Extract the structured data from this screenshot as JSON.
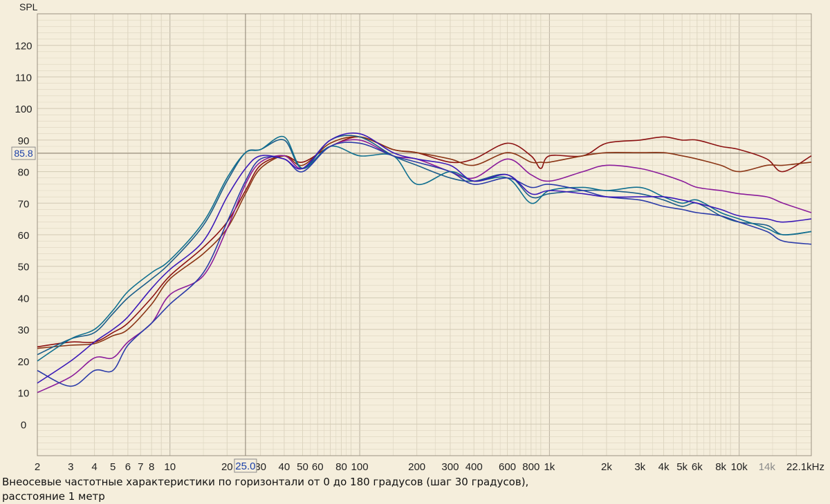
{
  "chart_data": {
    "type": "line",
    "ylabel": "SPL",
    "xunit": "kHz",
    "ylim": [
      -10,
      130
    ],
    "xlim": [
      2,
      24000
    ],
    "x_scale": "log",
    "grid": true,
    "y_ticks": [
      0,
      10,
      20,
      30,
      40,
      50,
      60,
      70,
      80,
      90,
      100,
      110,
      120
    ],
    "x_tick_labels": [
      {
        "v": 2,
        "t": "2"
      },
      {
        "v": 3,
        "t": "3"
      },
      {
        "v": 4,
        "t": "4"
      },
      {
        "v": 5,
        "t": "5"
      },
      {
        "v": 6,
        "t": "6"
      },
      {
        "v": 7,
        "t": "7"
      },
      {
        "v": 8,
        "t": "8"
      },
      {
        "v": 10,
        "t": "10"
      },
      {
        "v": 20,
        "t": "20"
      },
      {
        "v": 30,
        "t": "30"
      },
      {
        "v": 40,
        "t": "40"
      },
      {
        "v": 50,
        "t": "50"
      },
      {
        "v": 60,
        "t": "60"
      },
      {
        "v": 80,
        "t": "80"
      },
      {
        "v": 100,
        "t": "100"
      },
      {
        "v": 200,
        "t": "200"
      },
      {
        "v": 300,
        "t": "300"
      },
      {
        "v": 400,
        "t": "400"
      },
      {
        "v": 600,
        "t": "600"
      },
      {
        "v": 800,
        "t": "800"
      },
      {
        "v": 1000,
        "t": "1k"
      },
      {
        "v": 2000,
        "t": "2k"
      },
      {
        "v": 3000,
        "t": "3k"
      },
      {
        "v": 4000,
        "t": "4k"
      },
      {
        "v": 5000,
        "t": "5k"
      },
      {
        "v": 6000,
        "t": "6k"
      },
      {
        "v": 8000,
        "t": "8k"
      },
      {
        "v": 10000,
        "t": "10k"
      },
      {
        "v": 14000,
        "t": "14k",
        "muted": true
      },
      {
        "v": 22100,
        "t": "22.1kHz"
      }
    ],
    "cursor": {
      "x": 25.0,
      "y": 85.8,
      "x_label": "25.0",
      "y_label": "85.8"
    },
    "series": [
      {
        "color": "#8b1010",
        "x": [
          2,
          3,
          4,
          5,
          6,
          8,
          10,
          15,
          20,
          25,
          30,
          40,
          50,
          70,
          100,
          150,
          200,
          300,
          400,
          600,
          800,
          900,
          1000,
          1500,
          2000,
          3000,
          4000,
          5000,
          6000,
          8000,
          10000,
          14000,
          17000,
          24000
        ],
        "y": [
          24.5,
          26,
          26,
          29,
          32,
          40,
          47,
          56,
          64,
          74,
          82,
          85,
          83,
          88,
          91,
          87,
          86,
          83,
          84,
          89,
          85,
          81,
          85,
          85,
          89,
          90,
          91,
          90,
          90,
          88,
          87,
          84,
          80,
          85
        ]
      },
      {
        "color": "#8a3414",
        "x": [
          2,
          3,
          4,
          5,
          6,
          8,
          10,
          15,
          20,
          25,
          30,
          40,
          50,
          70,
          100,
          150,
          200,
          300,
          400,
          600,
          800,
          900,
          1000,
          1500,
          2000,
          3000,
          4000,
          5000,
          6000,
          8000,
          10000,
          14000,
          17000,
          24000
        ],
        "y": [
          24,
          25,
          25.5,
          28,
          30,
          38,
          46,
          54,
          62,
          73,
          81,
          85,
          82,
          89,
          91,
          87,
          86,
          84,
          82,
          86,
          83,
          83,
          83,
          85,
          86,
          86,
          86,
          85,
          84,
          82,
          80,
          82,
          82,
          83
        ]
      },
      {
        "color": "#8a1a9a",
        "x": [
          2,
          3,
          4,
          5,
          6,
          8,
          10,
          15,
          20,
          25,
          30,
          40,
          50,
          70,
          100,
          150,
          200,
          300,
          400,
          600,
          800,
          1000,
          1500,
          2000,
          3000,
          4000,
          5000,
          6000,
          8000,
          10000,
          14000,
          17000,
          24000
        ],
        "y": [
          10,
          15,
          21,
          21,
          26,
          32,
          41,
          47,
          62,
          76,
          83,
          85,
          81,
          88,
          90,
          85,
          84,
          80,
          78,
          84,
          79,
          77,
          80,
          82,
          81,
          79,
          77,
          75,
          74,
          73,
          72,
          70,
          67
        ]
      },
      {
        "color": "#1a5c8a",
        "x": [
          2,
          3,
          4,
          5,
          6,
          8,
          10,
          15,
          20,
          25,
          30,
          40,
          50,
          70,
          100,
          150,
          200,
          300,
          400,
          600,
          800,
          1000,
          1500,
          2000,
          3000,
          4000,
          5000,
          6000,
          8000,
          10000,
          14000,
          17000,
          24000
        ],
        "y": [
          22,
          27,
          29,
          35,
          40,
          46,
          51,
          63,
          77,
          86,
          87,
          90,
          81,
          90,
          91,
          85,
          82,
          78,
          77,
          79,
          72,
          73,
          74,
          74,
          73,
          71,
          69,
          70,
          66,
          64,
          63,
          60,
          61
        ]
      },
      {
        "color": "#0f6f8f",
        "x": [
          2,
          3,
          4,
          5,
          6,
          8,
          10,
          15,
          20,
          25,
          30,
          40,
          50,
          70,
          100,
          150,
          200,
          300,
          400,
          600,
          800,
          1000,
          1500,
          2000,
          3000,
          4000,
          5000,
          6000,
          8000,
          10000,
          14000,
          17000,
          24000
        ],
        "y": [
          20,
          27,
          30,
          36,
          42,
          48,
          52,
          64,
          78,
          86,
          87,
          91,
          81,
          88,
          85,
          85,
          76,
          80,
          77,
          78,
          70,
          74,
          75,
          74,
          75,
          72,
          70,
          71,
          67,
          65,
          62,
          60,
          61
        ]
      },
      {
        "color": "#2a3aa8",
        "x": [
          2,
          3,
          4,
          5,
          6,
          8,
          10,
          15,
          20,
          25,
          30,
          40,
          50,
          70,
          100,
          150,
          200,
          300,
          400,
          600,
          800,
          1000,
          1500,
          2000,
          3000,
          4000,
          5000,
          6000,
          8000,
          10000,
          14000,
          17000,
          24000
        ],
        "y": [
          17,
          12,
          17,
          17,
          25,
          32,
          38,
          48,
          64,
          77,
          84,
          84,
          80,
          88,
          89,
          85,
          83,
          80,
          76,
          78,
          75,
          76,
          74,
          72,
          71,
          69,
          68,
          67,
          66,
          64,
          61,
          58,
          57
        ]
      },
      {
        "color": "#3a18b8",
        "x": [
          2,
          3,
          4,
          5,
          6,
          8,
          10,
          15,
          20,
          25,
          30,
          40,
          50,
          70,
          100,
          150,
          200,
          300,
          400,
          600,
          800,
          1000,
          1500,
          2000,
          3000,
          4000,
          5000,
          6000,
          8000,
          10000,
          14000,
          17000,
          24000
        ],
        "y": [
          13,
          20,
          26,
          30,
          34,
          43,
          49,
          58,
          72,
          81,
          85,
          84,
          81,
          90,
          92,
          86,
          84,
          82,
          77,
          79,
          73,
          74,
          73,
          72,
          72,
          72,
          71,
          70,
          68,
          66,
          65,
          64,
          65
        ]
      }
    ]
  },
  "caption": {
    "line1": "Внеосевые частотные характеристики по горизонтали от 0 до 180 градусов (шаг 30 градусов),",
    "line2": "расстояние 1 метр"
  },
  "colors": {
    "background": "#f5eedc",
    "grid_minor": "#ddd5c0",
    "grid_major": "#b8b0a0",
    "cursor_label": "#1a3fa8"
  }
}
